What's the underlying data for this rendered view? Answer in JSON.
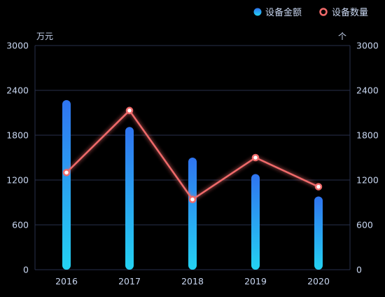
{
  "chart_data": {
    "type": "bar",
    "categories": [
      "2016",
      "2017",
      "2018",
      "2019",
      "2020"
    ],
    "series": [
      {
        "name": "设备金额",
        "type": "bar",
        "axis": "left",
        "values": [
          2270,
          1910,
          1500,
          1280,
          980
        ]
      },
      {
        "name": "设备数量",
        "type": "line",
        "axis": "right",
        "values": [
          1300,
          2130,
          940,
          1500,
          1110
        ]
      }
    ],
    "y_left": {
      "unit": "万元",
      "range": [
        0,
        3000
      ],
      "ticks": [
        0,
        600,
        1200,
        1800,
        2400,
        3000
      ]
    },
    "y_right": {
      "unit": "个",
      "range": [
        0,
        3000
      ],
      "ticks": [
        0,
        600,
        1200,
        1800,
        2400,
        3000
      ]
    },
    "grid": true,
    "legend_position": "top-right",
    "colors": {
      "background": "#000000",
      "axis_text": "#c8d6f0",
      "grid": "#27304d",
      "bar_top": "#2f74f0",
      "bar_bottom": "#24d2f2",
      "line": "#f06a6a",
      "legend_text": "#c8d6f0"
    }
  }
}
